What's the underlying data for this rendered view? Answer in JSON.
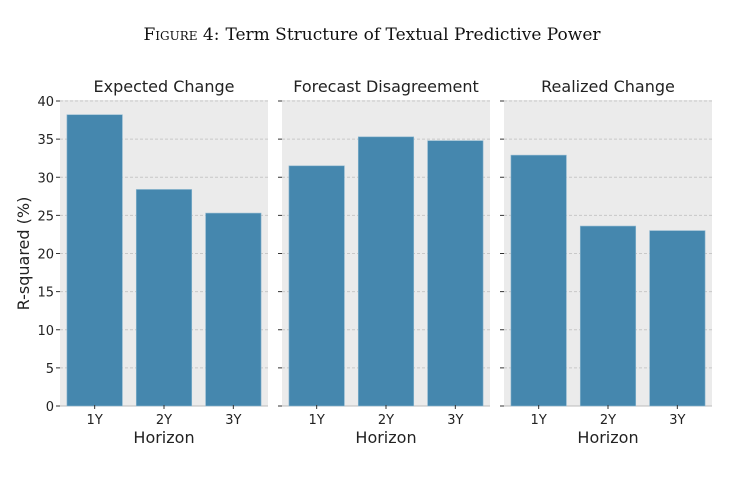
{
  "figure_label": "Figure 4:",
  "figure_title": "Term Structure of Textual Predictive Power",
  "chart_data": [
    {
      "type": "bar",
      "title": "Expected Change",
      "categories": [
        "1Y",
        "2Y",
        "3Y"
      ],
      "values": [
        38.2,
        28.4,
        25.3
      ],
      "xlabel": "Horizon",
      "ylabel": "R-squared (%)",
      "ylim": [
        0,
        40
      ],
      "yticks": [
        0,
        5,
        10,
        15,
        20,
        25,
        30,
        35,
        40
      ],
      "grid": true
    },
    {
      "type": "bar",
      "title": "Forecast Disagreement",
      "categories": [
        "1Y",
        "2Y",
        "3Y"
      ],
      "values": [
        31.5,
        35.3,
        34.8
      ],
      "xlabel": "Horizon",
      "ylabel": "",
      "ylim": [
        0,
        40
      ],
      "grid": true
    },
    {
      "type": "bar",
      "title": "Realized Change",
      "categories": [
        "1Y",
        "2Y",
        "3Y"
      ],
      "values": [
        32.9,
        23.6,
        23.0
      ],
      "xlabel": "Horizon",
      "ylabel": "",
      "ylim": [
        0,
        40
      ],
      "grid": true
    }
  ],
  "colors": {
    "bar": "#4587ae",
    "panel_bg": "#ebebeb",
    "grid": "#c8c8c8"
  }
}
